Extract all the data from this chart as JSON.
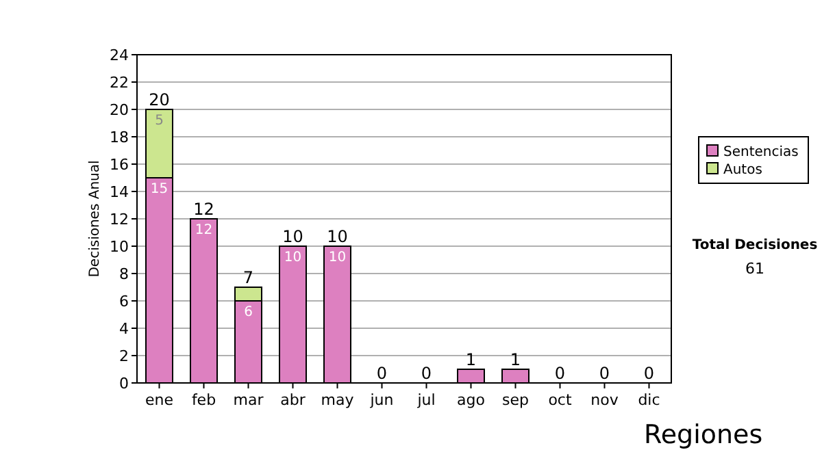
{
  "chart_data": {
    "type": "bar",
    "stacked": true,
    "ylabel": "Decisiones Anual",
    "categories": [
      "ene",
      "feb",
      "mar",
      "abr",
      "may",
      "jun",
      "jul",
      "ago",
      "sep",
      "oct",
      "nov",
      "dic"
    ],
    "series": [
      {
        "name": "Sentencias",
        "color": "#dd80c0",
        "values": [
          15,
          12,
          6,
          10,
          10,
          0,
          0,
          1,
          1,
          0,
          0,
          0
        ],
        "value_labels": [
          "15",
          "12",
          "6",
          "10",
          "10",
          null,
          null,
          null,
          null,
          null,
          null,
          null
        ]
      },
      {
        "name": "Autos",
        "color": "#cce68f",
        "values": [
          5,
          0,
          1,
          0,
          0,
          0,
          0,
          0,
          0,
          0,
          0,
          0
        ],
        "value_labels": [
          "5",
          null,
          null,
          null,
          null,
          null,
          null,
          null,
          null,
          null,
          null,
          null
        ]
      }
    ],
    "totals": [
      "20",
      "12",
      "7",
      "10",
      "10",
      "0",
      "0",
      "1",
      "1",
      "0",
      "0",
      "0"
    ],
    "ylim": [
      0,
      24
    ],
    "yticks": [
      0,
      2,
      4,
      6,
      8,
      10,
      12,
      14,
      16,
      18,
      20,
      22,
      24
    ],
    "grid": "y",
    "legend": "right",
    "annotations": [
      "Total Decisiones",
      "61",
      "Regiones"
    ]
  }
}
